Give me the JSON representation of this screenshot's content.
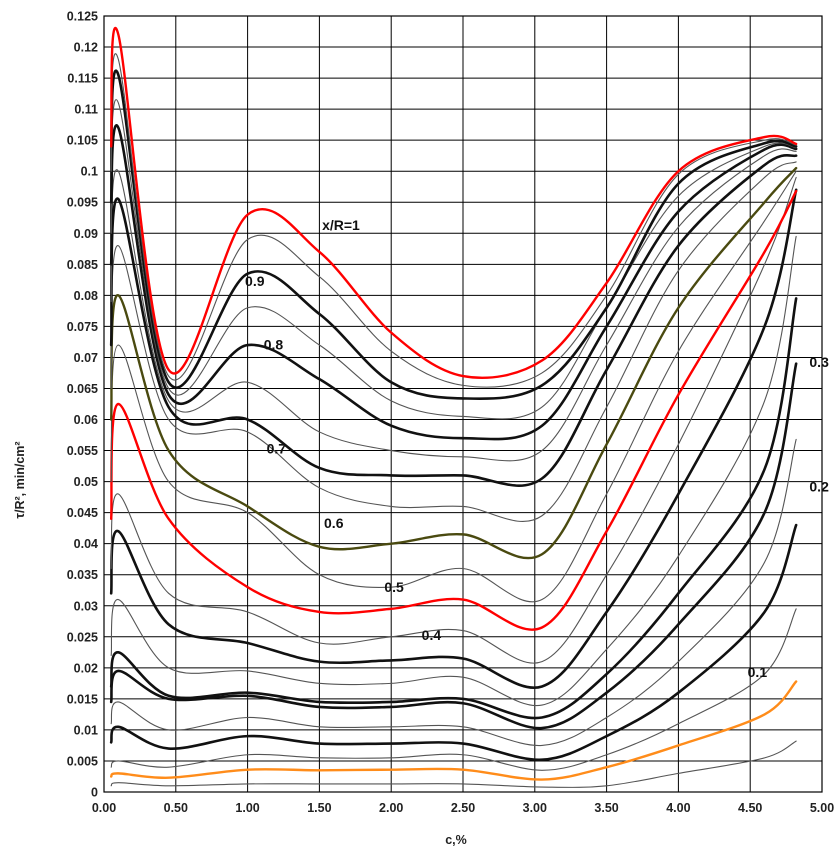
{
  "chart_data": {
    "type": "line",
    "title": "",
    "xlabel": "c,%",
    "ylabel": "τ/R², min/cm²",
    "xlim": [
      0,
      5
    ],
    "ylim": [
      0,
      0.125
    ],
    "grid": true,
    "legend": "none",
    "x_ticks": [
      0,
      0.5,
      1,
      1.5,
      2,
      2.5,
      3,
      3.5,
      4,
      4.5,
      5
    ],
    "x_tick_labels": [
      "0.00",
      "0.50",
      "1.00",
      "1.50",
      "2.00",
      "2.50",
      "3.00",
      "3.50",
      "4.00",
      "4.50",
      "5.00"
    ],
    "y_ticks": [
      0,
      0.005,
      0.01,
      0.015,
      0.02,
      0.025,
      0.03,
      0.035,
      0.04,
      0.045,
      0.05,
      0.055,
      0.06,
      0.065,
      0.07,
      0.075,
      0.08,
      0.085,
      0.09,
      0.095,
      0.1,
      0.105,
      0.11,
      0.115,
      0.12,
      0.125
    ],
    "y_tick_labels": [
      "0",
      "0.005",
      "0.01",
      "0.015",
      "0.02",
      "0.025",
      "0.03",
      "0.035",
      "0.04",
      "0.045",
      "0.05",
      "0.055",
      "0.06",
      "0.065",
      "0.07",
      "0.075",
      "0.08",
      "0.085",
      "0.09",
      "0.095",
      "0.1",
      "0.105",
      "0.11",
      "0.115",
      "0.12",
      "0.125"
    ],
    "colors": {
      "red": "#ff0000",
      "olive": "#4a4a10",
      "orange": "#ff8c1a",
      "black": "#111111",
      "thin": "#555555"
    },
    "x": [
      0.05,
      0.1,
      0.45,
      1.0,
      1.5,
      2.0,
      2.5,
      3.05,
      3.5,
      4.0,
      4.6,
      4.82
    ],
    "series": [
      {
        "name": "",
        "style": "thin",
        "values": [
          0.001,
          0.0015,
          0.001,
          0.0013,
          0.0013,
          0.0013,
          0.0013,
          0.0008,
          0.001,
          0.003,
          0.0055,
          0.0082
        ]
      },
      {
        "name": "0.1",
        "style": "orange",
        "values": [
          0.0025,
          0.003,
          0.0023,
          0.0036,
          0.0035,
          0.0036,
          0.0036,
          0.002,
          0.004,
          0.0075,
          0.0125,
          0.0178
        ]
      },
      {
        "name": "",
        "style": "thin",
        "values": [
          0.004,
          0.005,
          0.004,
          0.006,
          0.0055,
          0.0055,
          0.006,
          0.0035,
          0.006,
          0.011,
          0.019,
          0.0295
        ]
      },
      {
        "name": "",
        "style": "black",
        "values": [
          0.008,
          0.0105,
          0.007,
          0.009,
          0.0078,
          0.0078,
          0.0078,
          0.0052,
          0.009,
          0.016,
          0.029,
          0.043
        ]
      },
      {
        "name": "",
        "style": "thin",
        "values": [
          0.011,
          0.0145,
          0.01,
          0.012,
          0.0105,
          0.0105,
          0.0105,
          0.0075,
          0.012,
          0.021,
          0.037,
          0.0568
        ]
      },
      {
        "name": "0.2",
        "style": "black",
        "values": [
          0.0145,
          0.0195,
          0.015,
          0.0155,
          0.0137,
          0.0137,
          0.0143,
          0.0103,
          0.016,
          0.027,
          0.045,
          0.069
        ]
      },
      {
        "name": "",
        "style": "black",
        "values": [
          0.017,
          0.0225,
          0.0155,
          0.016,
          0.0145,
          0.0145,
          0.015,
          0.012,
          0.019,
          0.032,
          0.052,
          0.0795
        ]
      },
      {
        "name": "",
        "style": "thin",
        "values": [
          0.022,
          0.031,
          0.02,
          0.0195,
          0.0175,
          0.0175,
          0.0185,
          0.014,
          0.023,
          0.038,
          0.063,
          0.0895
        ]
      },
      {
        "name": "0.4",
        "style": "black",
        "values": [
          0.032,
          0.042,
          0.027,
          0.024,
          0.021,
          0.0212,
          0.0215,
          0.017,
          0.029,
          0.048,
          0.075,
          0.097
        ]
      },
      {
        "name": "",
        "style": "thin",
        "values": [
          0.036,
          0.048,
          0.032,
          0.029,
          0.024,
          0.025,
          0.026,
          0.021,
          0.035,
          0.056,
          0.085,
          0.099
        ]
      },
      {
        "name": "0.5",
        "style": "red",
        "values": [
          0.044,
          0.0625,
          0.044,
          0.033,
          0.029,
          0.0295,
          0.031,
          0.0265,
          0.042,
          0.064,
          0.087,
          0.0968
        ]
      },
      {
        "name": "",
        "style": "thin",
        "values": [
          0.05,
          0.072,
          0.05,
          0.045,
          0.035,
          0.033,
          0.036,
          0.031,
          0.048,
          0.071,
          0.092,
          0.1
        ]
      },
      {
        "name": "0.6",
        "style": "olive",
        "values": [
          0.06,
          0.08,
          0.055,
          0.046,
          0.0395,
          0.04,
          0.0415,
          0.0383,
          0.056,
          0.078,
          0.095,
          0.1005
        ]
      },
      {
        "name": "",
        "style": "thin",
        "values": [
          0.065,
          0.088,
          0.06,
          0.058,
          0.049,
          0.046,
          0.046,
          0.0445,
          0.062,
          0.084,
          0.099,
          0.1015
        ]
      },
      {
        "name": "0.7",
        "style": "black",
        "values": [
          0.072,
          0.0955,
          0.062,
          0.06,
          0.0522,
          0.051,
          0.051,
          0.0505,
          0.068,
          0.088,
          0.101,
          0.1025
        ]
      },
      {
        "name": "",
        "style": "thin",
        "values": [
          0.079,
          0.1,
          0.063,
          0.066,
          0.058,
          0.055,
          0.054,
          0.055,
          0.072,
          0.091,
          0.1025,
          0.1032
        ]
      },
      {
        "name": "0.8",
        "style": "black",
        "values": [
          0.085,
          0.107,
          0.064,
          0.072,
          0.0665,
          0.059,
          0.057,
          0.059,
          0.075,
          0.0935,
          0.1035,
          0.1036
        ]
      },
      {
        "name": "",
        "style": "thin",
        "values": [
          0.09,
          0.111,
          0.065,
          0.078,
          0.072,
          0.063,
          0.0605,
          0.062,
          0.078,
          0.096,
          0.104,
          0.1038
        ]
      },
      {
        "name": "0.9",
        "style": "black",
        "values": [
          0.095,
          0.1155,
          0.066,
          0.0835,
          0.077,
          0.066,
          0.0634,
          0.0655,
          0.078,
          0.098,
          0.1045,
          0.104
        ]
      },
      {
        "name": "",
        "style": "thin",
        "values": [
          0.1,
          0.118,
          0.067,
          0.089,
          0.083,
          0.071,
          0.0655,
          0.0675,
          0.08,
          0.0995,
          0.105,
          0.1042
        ]
      },
      {
        "name": "x/R=1",
        "style": "red",
        "values": [
          0.104,
          0.122,
          0.068,
          0.093,
          0.087,
          0.074,
          0.067,
          0.0695,
          0.082,
          0.1,
          0.1055,
          0.1044
        ]
      }
    ],
    "annotations": [
      {
        "text": "x/R=1",
        "x": 1.65,
        "y": 0.0905
      },
      {
        "text": "0.9",
        "x": 1.05,
        "y": 0.0815
      },
      {
        "text": "0.8",
        "x": 1.18,
        "y": 0.0713
      },
      {
        "text": "0.7",
        "x": 1.2,
        "y": 0.0545
      },
      {
        "text": "0.6",
        "x": 1.6,
        "y": 0.0425
      },
      {
        "text": "0.5",
        "x": 2.02,
        "y": 0.0322
      },
      {
        "text": "0.4",
        "x": 2.28,
        "y": 0.0245
      },
      {
        "text": "0.3",
        "x": 4.98,
        "y": 0.0685
      },
      {
        "text": "0.2",
        "x": 4.98,
        "y": 0.0484
      },
      {
        "text": "0.1",
        "x": 4.55,
        "y": 0.0185
      }
    ]
  }
}
